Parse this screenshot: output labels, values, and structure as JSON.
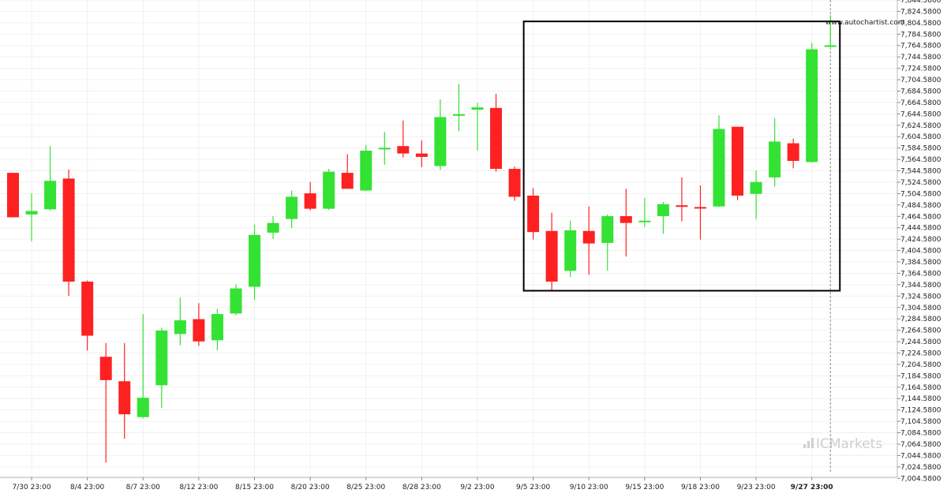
{
  "watermark_url": "www.autochartist.com",
  "brand_name": "ICMarkets",
  "colors": {
    "bull": "#33e233",
    "bear": "#fe2121",
    "grid": "#f0f0f0",
    "box": "#000000"
  },
  "chart_data": {
    "type": "candlestick",
    "ylim": [
      6994.58,
      7844.58
    ],
    "y_ticks": [
      "7,004.5800",
      "7,024.5800",
      "7,044.5800",
      "7,064.5800",
      "7,084.5800",
      "7,104.5800",
      "7,124.5800",
      "7,144.5800",
      "7,164.5800",
      "7,184.5800",
      "7,204.5800",
      "7,224.5800",
      "7,244.5800",
      "7,264.5800",
      "7,284.5800",
      "7,304.5800",
      "7,324.5800",
      "7,344.5800",
      "7,364.5800",
      "7,384.5800",
      "7,404.5800",
      "7,424.5800",
      "7,444.5800",
      "7,464.5800",
      "7,484.5800",
      "7,504.5800",
      "7,524.5800",
      "7,544.5800",
      "7,564.5800",
      "7,584.5800",
      "7,604.5800",
      "7,624.5800",
      "7,644.5800",
      "7,664.5800",
      "7,684.5800",
      "7,704.5800",
      "7,724.5800",
      "7,744.5800",
      "7,764.5800",
      "7,784.5800",
      "7,804.5800",
      "7,824.5800",
      "7,844.5800"
    ],
    "y_tick_values": [
      7004.58,
      7024.58,
      7044.58,
      7064.58,
      7084.58,
      7104.58,
      7124.58,
      7144.58,
      7164.58,
      7184.58,
      7204.58,
      7224.58,
      7244.58,
      7264.58,
      7284.58,
      7304.58,
      7324.58,
      7344.58,
      7364.58,
      7384.58,
      7404.58,
      7424.58,
      7444.58,
      7464.58,
      7484.58,
      7504.58,
      7524.58,
      7544.58,
      7564.58,
      7584.58,
      7604.58,
      7624.58,
      7644.58,
      7664.58,
      7684.58,
      7704.58,
      7724.58,
      7744.58,
      7764.58,
      7784.58,
      7804.58,
      7824.58,
      7844.58
    ],
    "x_labels": [
      {
        "index": 1,
        "label": "7/30 23:00"
      },
      {
        "index": 4,
        "label": "8/4 23:00"
      },
      {
        "index": 7,
        "label": "8/7 23:00"
      },
      {
        "index": 10,
        "label": "8/12 23:00"
      },
      {
        "index": 13,
        "label": "8/15 23:00"
      },
      {
        "index": 16,
        "label": "8/20 23:00"
      },
      {
        "index": 19,
        "label": "8/25 23:00"
      },
      {
        "index": 22,
        "label": "8/28 23:00"
      },
      {
        "index": 25,
        "label": "9/2 23:00"
      },
      {
        "index": 28,
        "label": "9/5 23:00"
      },
      {
        "index": 31,
        "label": "9/10 23:00"
      },
      {
        "index": 34,
        "label": "9/15 23:00"
      },
      {
        "index": 37,
        "label": "9/18 23:00"
      },
      {
        "index": 40,
        "label": "9/23 23:00"
      },
      {
        "index": 43,
        "label": "9/27 23:00",
        "highlight": true
      }
    ],
    "candles": [
      {
        "o": 7541,
        "h": 7541,
        "l": 7463,
        "c": 7463
      },
      {
        "o": 7468,
        "h": 7505,
        "l": 7421,
        "c": 7474
      },
      {
        "o": 7477,
        "h": 7588,
        "l": 7475,
        "c": 7527
      },
      {
        "o": 7531,
        "h": 7547,
        "l": 7325,
        "c": 7350
      },
      {
        "o": 7350,
        "h": 7352,
        "l": 7229,
        "c": 7255
      },
      {
        "o": 7218,
        "h": 7242,
        "l": 7032,
        "c": 7177
      },
      {
        "o": 7175,
        "h": 7242,
        "l": 7074,
        "c": 7117
      },
      {
        "o": 7112,
        "h": 7293,
        "l": 7110,
        "c": 7146
      },
      {
        "o": 7168,
        "h": 7269,
        "l": 7128,
        "c": 7264
      },
      {
        "o": 7258,
        "h": 7322,
        "l": 7238,
        "c": 7282
      },
      {
        "o": 7284,
        "h": 7312,
        "l": 7237,
        "c": 7245
      },
      {
        "o": 7247,
        "h": 7302,
        "l": 7229,
        "c": 7293
      },
      {
        "o": 7294,
        "h": 7345,
        "l": 7291,
        "c": 7338
      },
      {
        "o": 7341,
        "h": 7450,
        "l": 7318,
        "c": 7432
      },
      {
        "o": 7436,
        "h": 7465,
        "l": 7425,
        "c": 7453
      },
      {
        "o": 7460,
        "h": 7510,
        "l": 7444,
        "c": 7499
      },
      {
        "o": 7505,
        "h": 7525,
        "l": 7475,
        "c": 7478
      },
      {
        "o": 7478,
        "h": 7548,
        "l": 7476,
        "c": 7543
      },
      {
        "o": 7541,
        "h": 7574,
        "l": 7514,
        "c": 7513
      },
      {
        "o": 7510,
        "h": 7590,
        "l": 7509,
        "c": 7580
      },
      {
        "o": 7583,
        "h": 7613,
        "l": 7555,
        "c": 7585
      },
      {
        "o": 7588,
        "h": 7633,
        "l": 7568,
        "c": 7575
      },
      {
        "o": 7575,
        "h": 7598,
        "l": 7551,
        "c": 7569
      },
      {
        "o": 7553,
        "h": 7670,
        "l": 7546,
        "c": 7639
      },
      {
        "o": 7642,
        "h": 7697,
        "l": 7614,
        "c": 7644
      },
      {
        "o": 7652,
        "h": 7664,
        "l": 7580,
        "c": 7656
      },
      {
        "o": 7655,
        "h": 7680,
        "l": 7543,
        "c": 7548
      },
      {
        "o": 7548,
        "h": 7552,
        "l": 7492,
        "c": 7499
      },
      {
        "o": 7501,
        "h": 7514,
        "l": 7424,
        "c": 7437
      },
      {
        "o": 7439,
        "h": 7471,
        "l": 7334,
        "c": 7350
      },
      {
        "o": 7369,
        "h": 7457,
        "l": 7358,
        "c": 7440
      },
      {
        "o": 7439,
        "h": 7482,
        "l": 7362,
        "c": 7417
      },
      {
        "o": 7418,
        "h": 7468,
        "l": 7369,
        "c": 7465
      },
      {
        "o": 7465,
        "h": 7513,
        "l": 7394,
        "c": 7453
      },
      {
        "o": 7456,
        "h": 7497,
        "l": 7446,
        "c": 7457
      },
      {
        "o": 7465,
        "h": 7490,
        "l": 7434,
        "c": 7486
      },
      {
        "o": 7484,
        "h": 7533,
        "l": 7456,
        "c": 7483
      },
      {
        "o": 7481,
        "h": 7519,
        "l": 7424,
        "c": 7479
      },
      {
        "o": 7482,
        "h": 7642,
        "l": 7481,
        "c": 7618
      },
      {
        "o": 7622,
        "h": 7622,
        "l": 7493,
        "c": 7501
      },
      {
        "o": 7504,
        "h": 7545,
        "l": 7460,
        "c": 7525
      },
      {
        "o": 7533,
        "h": 7637,
        "l": 7517,
        "c": 7596
      },
      {
        "o": 7593,
        "h": 7601,
        "l": 7549,
        "c": 7562
      },
      {
        "o": 7560,
        "h": 7769,
        "l": 7559,
        "c": 7758
      },
      {
        "o": 7763,
        "h": 7818,
        "l": 7763,
        "c": 7765
      }
    ],
    "pattern_box": {
      "start_index": 28,
      "end_index": 44,
      "high": 7807,
      "low": 7334
    },
    "cursor_index": 44,
    "grid": true
  }
}
